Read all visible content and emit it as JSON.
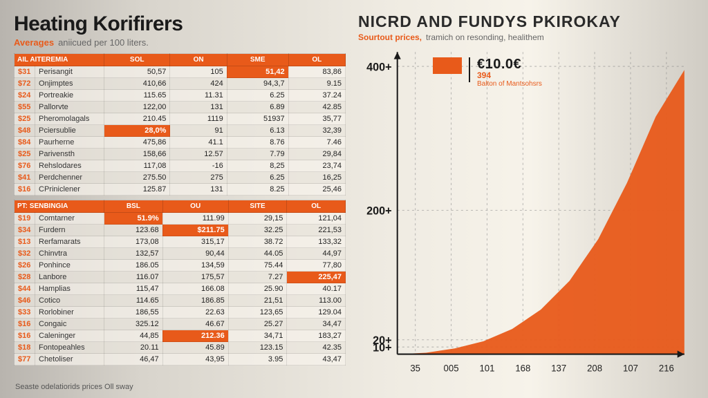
{
  "left": {
    "title": "Heating Korifirers",
    "subtitle_orange": "Averages",
    "subtitle_grey": "aniicued per 100 liters.",
    "table1": {
      "headers": [
        "AIL AITEREMIA",
        "SOL",
        "ON",
        "SME",
        "OL"
      ],
      "rows": [
        {
          "id": "$31",
          "name": "Perisangit",
          "c": [
            "50,57",
            "105",
            "51,42",
            "83,86"
          ],
          "hl": [
            false,
            false,
            true,
            false
          ]
        },
        {
          "id": "$72",
          "name": "Onjimptes",
          "c": [
            "410,66",
            "424",
            "94,3,7",
            "9.15"
          ],
          "hl": [
            false,
            false,
            false,
            false
          ]
        },
        {
          "id": "$24",
          "name": "Portreakie",
          "c": [
            "115.65",
            "11.31",
            "6.25",
            "37.24"
          ],
          "hl": [
            false,
            false,
            false,
            false
          ]
        },
        {
          "id": "$55",
          "name": "Pallorvte",
          "c": [
            "122,00",
            "131",
            "6.89",
            "42.85"
          ],
          "hl": [
            false,
            false,
            false,
            false
          ]
        },
        {
          "id": "$25",
          "name": "Pheromolagals",
          "c": [
            "210.45",
            "1119",
            "51937",
            "35,77"
          ],
          "hl": [
            false,
            false,
            false,
            false
          ]
        },
        {
          "id": "$48",
          "name": "Pciersublie",
          "c": [
            "28,0%",
            "91",
            "6.13",
            "32,39"
          ],
          "hl": [
            true,
            false,
            false,
            false
          ]
        },
        {
          "id": "$84",
          "name": "Paurherne",
          "c": [
            "475,86",
            "41.1",
            "8.76",
            "7.46"
          ],
          "hl": [
            false,
            false,
            false,
            false
          ]
        },
        {
          "id": "$25",
          "name": "Parivensth",
          "c": [
            "158,66",
            "12.57",
            "7.79",
            "29,84"
          ],
          "hl": [
            false,
            false,
            false,
            false
          ]
        },
        {
          "id": "$76",
          "name": "Rehslodares",
          "c": [
            "117,08",
            "-16",
            "8,25",
            "23,74"
          ],
          "hl": [
            false,
            false,
            false,
            false
          ]
        },
        {
          "id": "$41",
          "name": "Perdchenner",
          "c": [
            "275.50",
            "275",
            "6.25",
            "16,25"
          ],
          "hl": [
            false,
            false,
            false,
            false
          ]
        },
        {
          "id": "$16",
          "name": "CPriniclener",
          "c": [
            "125.87",
            "131",
            "8.25",
            "25,46"
          ],
          "hl": [
            false,
            false,
            false,
            false
          ]
        }
      ]
    },
    "table2": {
      "headers": [
        "PT: SENBINGIA",
        "BSL",
        "OU",
        "SITE",
        "OL"
      ],
      "rows": [
        {
          "id": "$19",
          "name": "Comtarner",
          "c": [
            "51.9%",
            "111.99",
            "29,15",
            "121,04"
          ],
          "hl": [
            true,
            false,
            false,
            false
          ]
        },
        {
          "id": "$34",
          "name": "Furdern",
          "c": [
            "123.68",
            "$211.75",
            "32.25",
            "221,53"
          ],
          "hl": [
            false,
            true,
            false,
            false
          ]
        },
        {
          "id": "$13",
          "name": "Rerfamarats",
          "c": [
            "173,08",
            "315,17",
            "38.72",
            "133,32"
          ],
          "hl": [
            false,
            false,
            false,
            false
          ]
        },
        {
          "id": "$32",
          "name": "Chinvtra",
          "c": [
            "132,57",
            "90,44",
            "44.05",
            "44,97"
          ],
          "hl": [
            false,
            false,
            false,
            false
          ]
        },
        {
          "id": "$26",
          "name": "Ponhince",
          "c": [
            "186.05",
            "134,59",
            "75.44",
            "77,80"
          ],
          "hl": [
            false,
            false,
            false,
            false
          ]
        },
        {
          "id": "$28",
          "name": "Lanbore",
          "c": [
            "116.07",
            "175,57",
            "7.27",
            "225,47"
          ],
          "hl": [
            false,
            false,
            false,
            true
          ]
        },
        {
          "id": "$44",
          "name": "Hamplias",
          "c": [
            "115,47",
            "166.08",
            "25.90",
            "40.17"
          ],
          "hl": [
            false,
            false,
            false,
            false
          ]
        },
        {
          "id": "$46",
          "name": "Cotico",
          "c": [
            "114.65",
            "186.85",
            "21,51",
            "113.00"
          ],
          "hl": [
            false,
            false,
            false,
            false
          ]
        },
        {
          "id": "$33",
          "name": "Rorlobiner",
          "c": [
            "186,55",
            "22.63",
            "123,65",
            "129.04"
          ],
          "hl": [
            false,
            false,
            false,
            false
          ]
        },
        {
          "id": "$16",
          "name": "Congaic",
          "c": [
            "325.12",
            "46.67",
            "25.27",
            "34,47"
          ],
          "hl": [
            false,
            false,
            false,
            false
          ]
        },
        {
          "id": "$16",
          "name": "Caleninger",
          "c": [
            "44,85",
            "212.36",
            "34,71",
            "183,27"
          ],
          "hl": [
            false,
            true,
            false,
            false
          ]
        },
        {
          "id": "$18",
          "name": "Fontopeahles",
          "c": [
            "20.11",
            "45.89",
            "123.15",
            "42.35"
          ],
          "hl": [
            false,
            false,
            false,
            false
          ]
        },
        {
          "id": "$77",
          "name": "Chetoliser",
          "c": [
            "46,47",
            "43,95",
            "3.95",
            "43,47"
          ],
          "hl": [
            false,
            false,
            false,
            false
          ]
        }
      ]
    }
  },
  "right": {
    "title": "NICRD AND FUNDYS PKIROKAY",
    "subtitle_orange": "Sourtout prices,",
    "subtitle_grey": "tramich on resonding, healithem",
    "chart": {
      "type": "area",
      "ylim": [
        0,
        420
      ],
      "yticks": [
        {
          "v": 400,
          "label": "400+"
        },
        {
          "v": 200,
          "label": "200+"
        },
        {
          "v": 20,
          "label": "20+"
        },
        {
          "v": 10,
          "label": "10+"
        }
      ],
      "xticks": [
        "35",
        "005",
        "101",
        "168",
        "137",
        "208",
        "107",
        "216"
      ],
      "series": [
        0,
        2,
        8,
        18,
        35,
        62,
        102,
        160,
        238,
        330,
        395
      ],
      "area_color": "#e85a1a",
      "axis_color": "#1a1a1a",
      "grid_color": "#888888",
      "legend": {
        "big": "€10.0€",
        "mid": "394",
        "small": "Balton of Mantsohsrs"
      }
    }
  },
  "footnote": "Seaste odelatiorids prices Oll sway"
}
